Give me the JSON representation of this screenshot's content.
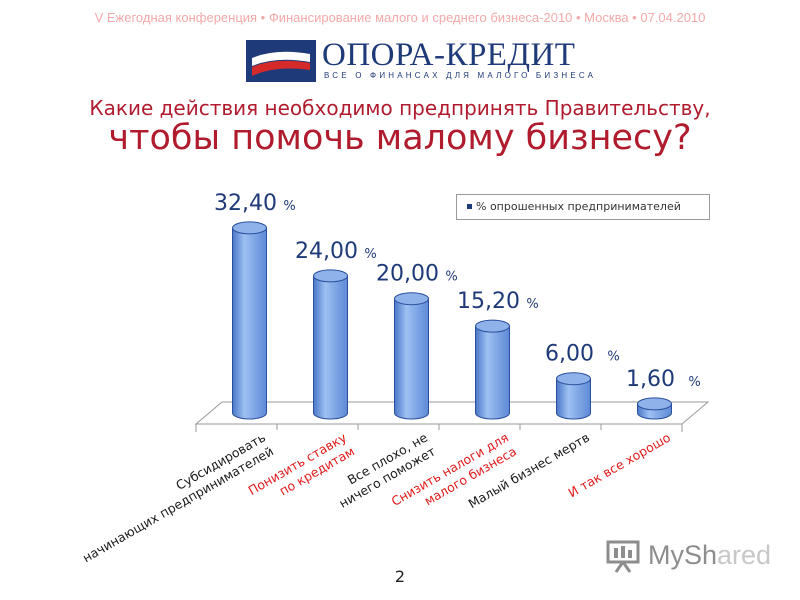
{
  "header": {
    "conference_line": "V Ежегодная конференция • Финансирование малого и среднего бизнеса-2010 • Москва • 07.04.2010",
    "logo": {
      "name": "ОПОРА-КРЕДИТ",
      "tagline": "ВСЕ О ФИНАНСАХ ДЛЯ МАЛОГО БИЗНЕСА"
    }
  },
  "slide": {
    "title_line1": "Какие действия необходимо предпринять Правительству,",
    "title_line2": "чтобы помочь малому бизнесу?",
    "page_number": "2"
  },
  "chart_data": {
    "type": "bar",
    "categories": [
      "Субсидировать начинающих предпринимателей",
      "Понизить ставку по кредитам",
      "Все плохо, ничего не поможет",
      "Снизить налоги для малого бизнеса",
      "Малый бизнес мертв",
      "И так все хорошо"
    ],
    "category_colors": [
      "#1a1a1a",
      "#e01b1b",
      "#1a1a1a",
      "#e01b1b",
      "#1a1a1a",
      "#e01b1b"
    ],
    "series": [
      {
        "name": "% опрошенных предпринимателей",
        "values": [
          32.4,
          24.0,
          20.0,
          15.2,
          6.0,
          1.6
        ]
      }
    ],
    "data_labels": [
      "32,40",
      "24,00",
      "20,00",
      "15,20",
      "6,00",
      "1,60"
    ],
    "label_unit": "%",
    "ylim": [
      0,
      35
    ],
    "legend_position": "top-right",
    "grid": false,
    "bar_color": "#6f9be0",
    "bar_edge_color": "#2a4f9c",
    "label_color": "#1f3a78"
  },
  "watermark": {
    "text_main": "MySh",
    "text_dim": "ared"
  }
}
